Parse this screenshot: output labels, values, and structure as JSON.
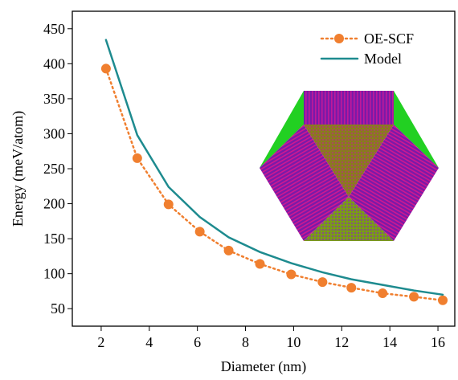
{
  "chart_data": {
    "type": "line",
    "xlabel": "Diameter (nm)",
    "ylabel": "Energy (meV/atom)",
    "x": [
      2.2,
      3.5,
      4.8,
      6.1,
      7.3,
      8.6,
      9.9,
      11.2,
      12.4,
      13.7,
      15.0,
      16.2
    ],
    "series": [
      {
        "name": "OE-SCF",
        "color": "#f07f2f",
        "linestyle": "dotted",
        "marker": "circle",
        "values": [
          393,
          265,
          199,
          160,
          133,
          114,
          99,
          88,
          80,
          72,
          67,
          62
        ]
      },
      {
        "name": "Model",
        "color": "#1e8b8f",
        "linestyle": "solid",
        "marker": "none",
        "values": [
          434,
          298,
          224,
          181,
          152,
          131,
          115,
          102,
          92,
          84,
          76,
          70
        ]
      }
    ],
    "xlim": [
      0.8,
      16.7
    ],
    "ylim": [
      25,
      475
    ],
    "xticks": [
      2,
      4,
      6,
      8,
      10,
      12,
      14,
      16
    ],
    "yticks": [
      50,
      100,
      150,
      200,
      250,
      300,
      350,
      400,
      450
    ],
    "legend": "upper right",
    "grid": false
  }
}
